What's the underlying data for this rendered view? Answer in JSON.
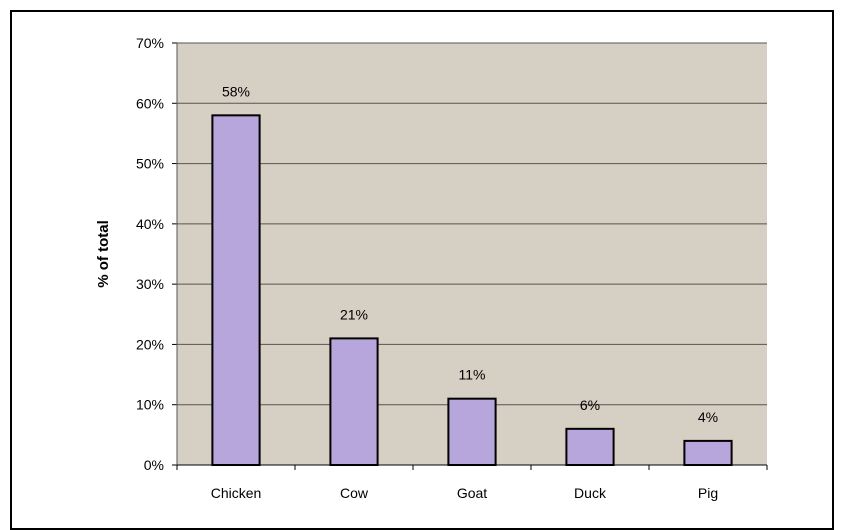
{
  "chart_data": {
    "type": "bar",
    "title": "",
    "xlabel": "",
    "ylabel": "% of total",
    "categories": [
      "Chicken",
      "Cow",
      "Goat",
      "Duck",
      "Pig"
    ],
    "values": [
      58,
      21,
      11,
      6,
      4
    ],
    "data_labels": [
      "58%",
      "21%",
      "11%",
      "6%",
      "4%"
    ],
    "ylim": [
      0,
      70
    ],
    "yticks": [
      0,
      10,
      20,
      30,
      40,
      50,
      60,
      70
    ],
    "ytick_labels": [
      "0%",
      "10%",
      "20%",
      "30%",
      "40%",
      "50%",
      "60%",
      "70%"
    ],
    "grid": true,
    "legend": "none",
    "colors": {
      "bar_fill": "#b7a6dc",
      "bar_stroke": "#000000",
      "plot_background": "#d6cfc4",
      "gridline": "#555555"
    }
  }
}
